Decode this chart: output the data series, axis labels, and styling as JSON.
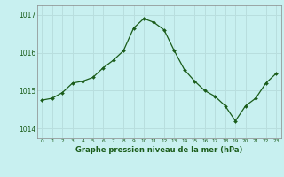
{
  "x": [
    0,
    1,
    2,
    3,
    4,
    5,
    6,
    7,
    8,
    9,
    10,
    11,
    12,
    13,
    14,
    15,
    16,
    17,
    18,
    19,
    20,
    21,
    22,
    23
  ],
  "y": [
    1014.75,
    1014.8,
    1014.95,
    1015.2,
    1015.25,
    1015.35,
    1015.6,
    1015.8,
    1016.05,
    1016.65,
    1016.9,
    1016.8,
    1016.6,
    1016.05,
    1015.55,
    1015.25,
    1015.0,
    1014.85,
    1014.6,
    1014.2,
    1014.6,
    1014.8,
    1015.2,
    1015.45
  ],
  "line_color": "#1a5c1a",
  "marker_color": "#1a5c1a",
  "bg_color": "#c8f0f0",
  "grid_color": "#b8dede",
  "axis_color": "#888888",
  "ylim_min": 1013.75,
  "ylim_max": 1017.25,
  "yticks": [
    1014,
    1015,
    1016,
    1017
  ],
  "xlabel": "Graphe pression niveau de la mer (hPa)",
  "xlabel_color": "#1a5c1a",
  "tick_label_color": "#1a5c1a"
}
